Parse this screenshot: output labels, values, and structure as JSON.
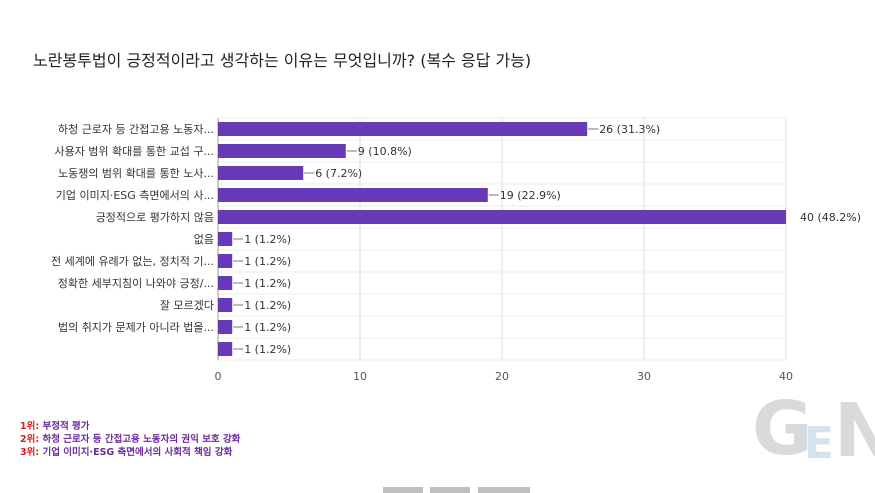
{
  "chart_data": {
    "type": "bar",
    "orientation": "horizontal",
    "title": "노란봉투법이 긍정적이라고 생각하는 이유는 무엇입니까? (복수 응답 가능)",
    "categories": [
      "하청 근로자 등 간접고용 노동자...",
      "사용자 범위 확대를 통한 교섭 구...",
      "노동쟁의 범위 확대를 통한 노사...",
      "기업 이미지·ESG 측면에서의 사...",
      "긍정적으로 평가하지 않음",
      "없음",
      "전 세계에 유례가 없는, 정치적 기...",
      "정확한 세부지침이 나와야 긍정/...",
      "잘 모르겠다",
      "법의 취지가 문제가 아니라 법을...",
      ""
    ],
    "values": [
      26,
      9,
      6,
      19,
      40,
      1,
      1,
      1,
      1,
      1,
      1
    ],
    "value_labels": [
      "26 (31.3%)",
      "9 (10.8%)",
      "6 (7.2%)",
      "19 (22.9%)",
      "40 (48.2%)",
      "1 (1.2%)",
      "1 (1.2%)",
      "1 (1.2%)",
      "1 (1.2%)",
      "1 (1.2%)",
      "1 (1.2%)"
    ],
    "xlim": [
      0,
      40
    ],
    "xticks": [
      0,
      10,
      20,
      30,
      40
    ],
    "grid": true,
    "bar_color": "#673ab7"
  },
  "notes": [
    {
      "rank": "1위:",
      "text": "부정적 평가"
    },
    {
      "rank": "2위:",
      "text": "하청 근로자 등 간접고용 노동자의 권익 보호 강화"
    },
    {
      "rank": "3위:",
      "text": "기업 이미지·ESG 측면에서의 사회적 책임 강화"
    }
  ],
  "watermark": {
    "letters": [
      "G",
      "E",
      "N"
    ],
    "colors": [
      "#d9dadc",
      "#d4e4ef"
    ]
  }
}
